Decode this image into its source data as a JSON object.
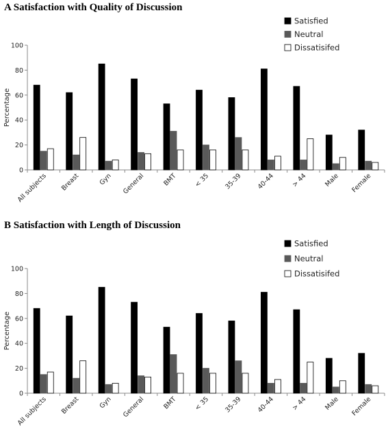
{
  "chart_data": [
    {
      "type": "bar",
      "title": "A Satisfaction with Quality of Discussion",
      "ylabel": "Percentage",
      "xlabel": "",
      "ylim": [
        0,
        100
      ],
      "yticks": [
        0,
        20,
        40,
        60,
        80,
        100
      ],
      "legend_position": "top-right",
      "grid": false,
      "categories": [
        "All subjects",
        "Breast",
        "Gyn",
        "General",
        "BMT",
        "< 35",
        "35-39",
        "40-44",
        "> 44",
        "Male",
        "Female"
      ],
      "series": [
        {
          "name": "Satisfied",
          "color": "#000000",
          "values": [
            68,
            62,
            85,
            73,
            53,
            64,
            58,
            81,
            67,
            28,
            32
          ]
        },
        {
          "name": "Neutral",
          "color": "#595959",
          "values": [
            15,
            12,
            7,
            14,
            31,
            20,
            26,
            8,
            8,
            5,
            7
          ]
        },
        {
          "name": "Dissatisifed",
          "color": "#ffffff",
          "values": [
            17,
            26,
            8,
            13,
            16,
            16,
            16,
            11,
            25,
            10,
            6
          ]
        }
      ]
    },
    {
      "type": "bar",
      "title": "B Satisfaction with Length of Discussion",
      "ylabel": "Percentage",
      "xlabel": "",
      "ylim": [
        0,
        100
      ],
      "yticks": [
        0,
        20,
        40,
        60,
        80,
        100
      ],
      "legend_position": "top-right",
      "grid": false,
      "categories": [
        "All subjects",
        "Breast",
        "Gyn",
        "General",
        "BMT",
        "< 35",
        "35-39",
        "40-44",
        "> 44",
        "Male",
        "Female"
      ],
      "series": [
        {
          "name": "Satisfied",
          "color": "#000000",
          "values": [
            68,
            62,
            85,
            73,
            53,
            64,
            58,
            81,
            67,
            28,
            32
          ]
        },
        {
          "name": "Neutral",
          "color": "#595959",
          "values": [
            15,
            12,
            7,
            14,
            31,
            20,
            26,
            8,
            8,
            5,
            7
          ]
        },
        {
          "name": "Dissatisifed",
          "color": "#ffffff",
          "values": [
            17,
            26,
            8,
            13,
            16,
            16,
            16,
            11,
            25,
            10,
            6
          ]
        }
      ]
    }
  ]
}
